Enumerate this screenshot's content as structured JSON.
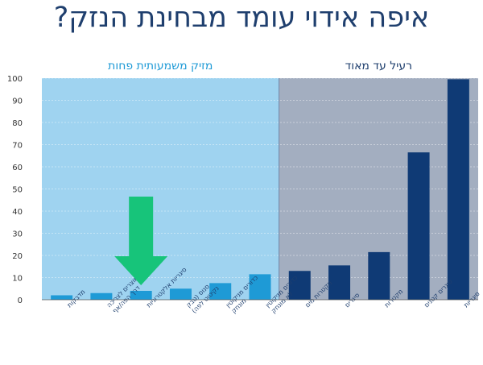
{
  "header": {
    "title": "איפה אידוי עומד מבחינת הנזק?"
  },
  "regions": {
    "left_label": "מזיק משמעותית פחות",
    "right_label": "רעיל עד מאוד"
  },
  "colors": {
    "left_bg": "#9fd3f0",
    "right_bg": "#a3aec0",
    "left_bar": "#1e9ad6",
    "right_bar": "#0f3a75",
    "arrow": "#17c47a",
    "left_text": "#1e9ad6",
    "right_text": "#1f3f6e"
  },
  "chart_data": {
    "type": "bar",
    "ylim": [
      0,
      100
    ],
    "yticks": [
      0,
      10,
      20,
      30,
      40,
      50,
      60,
      70,
      80,
      90,
      100
    ],
    "categories": [
      [
        "מדבקות"
      ],
      [
        "מוצרים לצריכה",
        "דרך הפה/אף"
      ],
      [
        "סיגריות אלקטרוניות"
      ],
      [
        "סנוס (טבק",
        "נקיטוט לפה)"
      ],
      [
        "כדורים מניקוטין",
        "מונחק"
      ],
      [
        "כדורים מניקוטין",
        "לא מונחק"
      ],
      [
        "מקטרות מים"
      ],
      [
        "סיגרים"
      ],
      [
        "מקטרות"
      ],
      [
        "סיגרים קטנים"
      ],
      [
        "סיגריות"
      ]
    ],
    "values": [
      2,
      3,
      4,
      5,
      7.5,
      11.5,
      13,
      15.5,
      21.5,
      66.5,
      99.5
    ],
    "region_split_index": 6,
    "highlight_index": 2
  }
}
